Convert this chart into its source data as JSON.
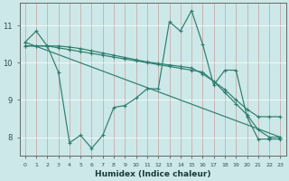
{
  "xlabel": "Humidex (Indice chaleur)",
  "background_color": "#cde8e8",
  "grid_color": "#b0d0d0",
  "line_color": "#2e7d6e",
  "xlim": [
    -0.5,
    23.5
  ],
  "ylim": [
    7.5,
    11.6
  ],
  "yticks": [
    8,
    9,
    10,
    11
  ],
  "xticks": [
    0,
    1,
    2,
    3,
    4,
    5,
    6,
    7,
    8,
    9,
    10,
    11,
    12,
    13,
    14,
    15,
    16,
    17,
    18,
    19,
    20,
    21,
    22,
    23
  ],
  "series": [
    {
      "x": [
        0,
        1,
        2,
        3,
        4,
        5,
        6,
        7,
        8,
        9,
        10,
        11,
        12,
        13,
        14,
        15,
        16,
        17,
        18,
        19,
        20,
        21,
        22,
        23
      ],
      "y": [
        10.55,
        10.85,
        10.45,
        9.75,
        7.85,
        8.05,
        7.7,
        8.05,
        8.8,
        8.85,
        9.05,
        9.3,
        9.3,
        11.1,
        10.85,
        11.4,
        10.5,
        9.4,
        9.8,
        9.8,
        8.55,
        7.95,
        7.95,
        7.95
      ]
    },
    {
      "x": [
        0,
        1,
        2,
        3,
        4,
        5,
        6,
        7,
        8,
        9,
        10,
        11,
        12,
        13,
        14,
        15,
        16,
        17,
        18,
        19,
        20,
        21,
        22,
        23
      ],
      "y": [
        10.45,
        10.45,
        10.45,
        10.4,
        10.35,
        10.3,
        10.25,
        10.2,
        10.15,
        10.1,
        10.05,
        10.0,
        9.95,
        9.9,
        9.85,
        9.8,
        9.75,
        9.5,
        9.2,
        8.9,
        8.6,
        8.2,
        8.0,
        8.0
      ]
    },
    {
      "x": [
        0,
        1,
        2,
        3,
        4,
        5,
        6,
        7,
        8,
        9,
        10,
        11,
        12,
        13,
        14,
        15,
        16,
        17,
        18,
        19,
        20,
        21,
        22,
        23
      ],
      "y": [
        10.45,
        10.45,
        10.45,
        10.45,
        10.42,
        10.38,
        10.32,
        10.26,
        10.2,
        10.14,
        10.08,
        10.02,
        9.98,
        9.94,
        9.9,
        9.86,
        9.7,
        9.5,
        9.28,
        9.0,
        8.75,
        8.55,
        8.55,
        8.55
      ]
    },
    {
      "x": [
        0,
        23
      ],
      "y": [
        10.55,
        8.0
      ]
    }
  ]
}
